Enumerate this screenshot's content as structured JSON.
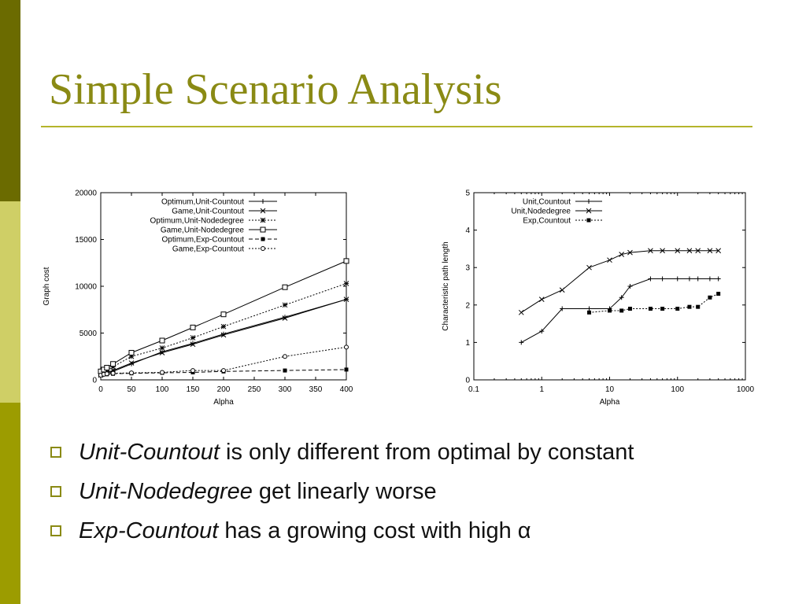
{
  "slide": {
    "title": "Simple Scenario Analysis",
    "accent_color": "#8a8a14",
    "bar_colors": [
      "#6b6b00",
      "#cfcf66",
      "#9c9c00"
    ]
  },
  "bullets": [
    {
      "em": "Unit-Countout",
      "text": " is only different from optimal by constant"
    },
    {
      "em": "Unit-Nodedegree",
      "text": " get linearly worse"
    },
    {
      "em": "Exp-Countout",
      "text": " has a growing cost with high α"
    }
  ],
  "chart_data": [
    {
      "type": "line",
      "title": "",
      "xlabel": "Alpha",
      "ylabel": "Graph cost",
      "xlim": [
        0,
        400
      ],
      "ylim": [
        0,
        20000
      ],
      "xticks": [
        0,
        50,
        100,
        150,
        200,
        250,
        300,
        350,
        400
      ],
      "yticks": [
        0,
        5000,
        10000,
        15000,
        20000
      ],
      "legend_position": "top-right",
      "series": [
        {
          "name": "Optimum,Unit-Countout",
          "marker": "+",
          "dash": "solid",
          "x": [
            0,
            5,
            10,
            20,
            50,
            100,
            150,
            200,
            300,
            400
          ],
          "y": [
            400,
            600,
            700,
            900,
            1700,
            3000,
            3900,
            4900,
            6700,
            8600
          ]
        },
        {
          "name": "Game,Unit-Countout",
          "marker": "x",
          "dash": "solid",
          "x": [
            0,
            5,
            10,
            20,
            50,
            100,
            150,
            200,
            300,
            400
          ],
          "y": [
            500,
            700,
            800,
            1000,
            1800,
            2900,
            3800,
            4800,
            6600,
            8600
          ]
        },
        {
          "name": "Optimum,Unit-Nodedegree",
          "marker": "*",
          "dash": "dot",
          "x": [
            0,
            5,
            10,
            20,
            50,
            100,
            150,
            200,
            300,
            400
          ],
          "y": [
            700,
            900,
            1100,
            1400,
            2500,
            3400,
            4500,
            5700,
            8000,
            10300
          ]
        },
        {
          "name": "Game,Unit-Nodedegree",
          "marker": "□",
          "dash": "solid",
          "x": [
            0,
            5,
            10,
            20,
            50,
            100,
            150,
            200,
            300,
            400
          ],
          "y": [
            900,
            1100,
            1300,
            1700,
            2900,
            4200,
            5600,
            7000,
            9900,
            12700
          ]
        },
        {
          "name": "Optimum,Exp-Countout",
          "marker": "■",
          "dash": "dash",
          "x": [
            0,
            5,
            10,
            20,
            50,
            100,
            150,
            200,
            300,
            400
          ],
          "y": [
            500,
            600,
            600,
            650,
            700,
            750,
            800,
            900,
            1000,
            1100
          ]
        },
        {
          "name": "Game,Exp-Countout",
          "marker": "○",
          "dash": "dot",
          "x": [
            0,
            5,
            10,
            20,
            50,
            100,
            150,
            200,
            300,
            400
          ],
          "y": [
            500,
            600,
            650,
            700,
            750,
            800,
            1000,
            1000,
            2500,
            3500
          ]
        }
      ]
    },
    {
      "type": "line",
      "title": "",
      "xlabel": "Alpha",
      "ylabel": "Characteristic path length",
      "xscale": "log",
      "xlim": [
        0.1,
        1000
      ],
      "ylim": [
        0,
        5
      ],
      "xticks": [
        0.1,
        1,
        10,
        100,
        1000
      ],
      "xtick_labels": [
        "0.1",
        "1",
        "10",
        "100",
        "1000"
      ],
      "yticks": [
        0,
        1,
        2,
        3,
        4,
        5
      ],
      "legend_position": "top-left",
      "series": [
        {
          "name": "Unit,Countout",
          "marker": "+",
          "dash": "solid",
          "x": [
            0.5,
            1,
            2,
            5,
            10,
            15,
            20,
            40,
            60,
            100,
            150,
            200,
            300,
            400
          ],
          "y": [
            1.0,
            1.3,
            1.9,
            1.9,
            1.9,
            2.2,
            2.5,
            2.7,
            2.7,
            2.7,
            2.7,
            2.7,
            2.7,
            2.7
          ]
        },
        {
          "name": "Unit,Nodedegree",
          "marker": "x",
          "dash": "solid",
          "x": [
            0.5,
            1,
            2,
            5,
            10,
            15,
            20,
            40,
            60,
            100,
            150,
            200,
            300,
            400
          ],
          "y": [
            1.8,
            2.15,
            2.4,
            3.0,
            3.2,
            3.35,
            3.4,
            3.45,
            3.45,
            3.45,
            3.45,
            3.45,
            3.45,
            3.45
          ]
        },
        {
          "name": "Exp,Countout",
          "marker": "■",
          "dash": "dot",
          "x": [
            5,
            10,
            15,
            20,
            40,
            60,
            100,
            150,
            200,
            300,
            400
          ],
          "y": [
            1.8,
            1.85,
            1.85,
            1.9,
            1.9,
            1.9,
            1.9,
            1.95,
            1.95,
            2.2,
            2.3
          ]
        }
      ]
    }
  ]
}
